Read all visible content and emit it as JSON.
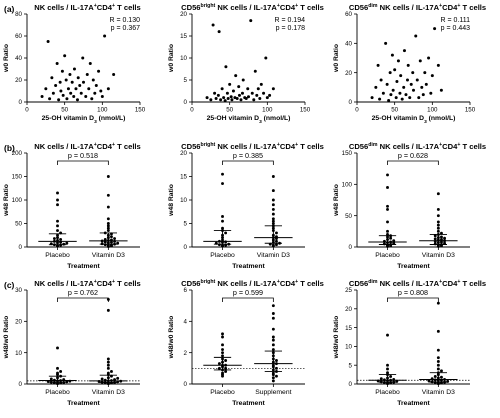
{
  "row_labels": [
    "(a)",
    "(b)",
    "(c)"
  ],
  "panel_titles": {
    "nk": {
      "prefix": "NK cells / IL-17A",
      "sup1": "+",
      "mid": "CD4",
      "sup2": "+",
      "suffix": " T cells"
    },
    "bright": {
      "prefix": "CD56",
      "sup0": "bright",
      "mid0": " NK cells / IL-17A",
      "sup1": "+",
      "mid": "CD4",
      "sup2": "+",
      "suffix": " T cells"
    },
    "dim": {
      "prefix": "CD56",
      "sup0": "dim",
      "mid0": " NK cells / IL-17A",
      "sup1": "+",
      "mid": "CD4",
      "sup2": "+",
      "suffix": " T cells"
    }
  },
  "chart_data": [
    {
      "id": "a1",
      "type": "scatter",
      "row": 0,
      "col": 0,
      "title_key": "nk",
      "xlabel": "25-OH vitamin D",
      "xlabel_sub": "3",
      "xlabel_unit": " (nmol/L)",
      "ylabel": "w0 Ratio",
      "xlim": [
        0,
        150
      ],
      "ylim": [
        0,
        80
      ],
      "xticks": [
        0,
        50,
        100,
        150
      ],
      "yticks": [
        0,
        20,
        40,
        60,
        80
      ],
      "stats": [
        "R = 0.130",
        "p = 0.367"
      ],
      "points": [
        [
          20,
          5
        ],
        [
          25,
          12
        ],
        [
          28,
          55
        ],
        [
          30,
          3
        ],
        [
          33,
          22
        ],
        [
          35,
          8
        ],
        [
          38,
          15
        ],
        [
          40,
          35
        ],
        [
          42,
          2
        ],
        [
          44,
          18
        ],
        [
          45,
          10
        ],
        [
          47,
          28
        ],
        [
          48,
          6
        ],
        [
          50,
          42
        ],
        [
          52,
          20
        ],
        [
          53,
          3
        ],
        [
          55,
          12
        ],
        [
          57,
          25
        ],
        [
          58,
          8
        ],
        [
          60,
          18
        ],
        [
          62,
          5
        ],
        [
          63,
          30
        ],
        [
          65,
          12
        ],
        [
          67,
          2
        ],
        [
          68,
          22
        ],
        [
          70,
          15
        ],
        [
          72,
          8
        ],
        [
          74,
          40
        ],
        [
          75,
          18
        ],
        [
          78,
          5
        ],
        [
          80,
          25
        ],
        [
          82,
          12
        ],
        [
          84,
          35
        ],
        [
          86,
          3
        ],
        [
          88,
          20
        ],
        [
          90,
          8
        ],
        [
          92,
          15
        ],
        [
          95,
          28
        ],
        [
          98,
          10
        ],
        [
          100,
          5
        ],
        [
          103,
          60
        ],
        [
          108,
          12
        ],
        [
          115,
          25
        ]
      ]
    },
    {
      "id": "a2",
      "type": "scatter",
      "row": 0,
      "col": 1,
      "title_key": "bright",
      "xlabel": "25-OH vitamin D",
      "xlabel_sub": "3",
      "xlabel_unit": " (nmol/L)",
      "ylabel": "w0 Ratio",
      "xlim": [
        0,
        150
      ],
      "ylim": [
        0,
        20
      ],
      "xticks": [
        0,
        50,
        100,
        150
      ],
      "yticks": [
        0,
        5,
        10,
        15,
        20
      ],
      "stats": [
        "R = 0.194",
        "p = 0.178"
      ],
      "points": [
        [
          20,
          1
        ],
        [
          25,
          0.5
        ],
        [
          28,
          17.5
        ],
        [
          30,
          2
        ],
        [
          32,
          0.8
        ],
        [
          35,
          1.5
        ],
        [
          36,
          16
        ],
        [
          38,
          0.5
        ],
        [
          40,
          3
        ],
        [
          42,
          1
        ],
        [
          44,
          0.3
        ],
        [
          45,
          8
        ],
        [
          47,
          2
        ],
        [
          48,
          0.8
        ],
        [
          50,
          4
        ],
        [
          52,
          1.2
        ],
        [
          53,
          0.5
        ],
        [
          55,
          2.5
        ],
        [
          57,
          1
        ],
        [
          58,
          6
        ],
        [
          60,
          0.8
        ],
        [
          62,
          3.5
        ],
        [
          63,
          1.5
        ],
        [
          65,
          0.5
        ],
        [
          67,
          2
        ],
        [
          68,
          5
        ],
        [
          70,
          1
        ],
        [
          72,
          0.8
        ],
        [
          74,
          3
        ],
        [
          75,
          1.2
        ],
        [
          78,
          18.5
        ],
        [
          80,
          2
        ],
        [
          82,
          0.5
        ],
        [
          84,
          7
        ],
        [
          86,
          1.5
        ],
        [
          88,
          3
        ],
        [
          90,
          0.8
        ],
        [
          92,
          4
        ],
        [
          95,
          2
        ],
        [
          98,
          10
        ],
        [
          100,
          1
        ],
        [
          103,
          1.5
        ],
        [
          108,
          3
        ]
      ]
    },
    {
      "id": "a3",
      "type": "scatter",
      "row": 0,
      "col": 2,
      "title_key": "dim",
      "xlabel": "25-OH vitamin D",
      "xlabel_sub": "3",
      "xlabel_unit": " (nmol/L)",
      "ylabel": "w0 Ratio",
      "xlim": [
        0,
        150
      ],
      "ylim": [
        0,
        60
      ],
      "xticks": [
        0,
        50,
        100,
        150
      ],
      "yticks": [
        0,
        20,
        40,
        60
      ],
      "stats": [
        "R = 0.111",
        "p = 0.443"
      ],
      "points": [
        [
          20,
          3
        ],
        [
          25,
          10
        ],
        [
          28,
          25
        ],
        [
          30,
          2
        ],
        [
          32,
          15
        ],
        [
          35,
          6
        ],
        [
          38,
          40
        ],
        [
          40,
          12
        ],
        [
          42,
          1
        ],
        [
          44,
          20
        ],
        [
          45,
          5
        ],
        [
          47,
          32
        ],
        [
          48,
          8
        ],
        [
          50,
          22
        ],
        [
          52,
          3
        ],
        [
          53,
          14
        ],
        [
          55,
          28
        ],
        [
          57,
          6
        ],
        [
          58,
          18
        ],
        [
          60,
          2
        ],
        [
          62,
          10
        ],
        [
          63,
          35
        ],
        [
          65,
          5
        ],
        [
          67,
          15
        ],
        [
          68,
          25
        ],
        [
          70,
          3
        ],
        [
          72,
          12
        ],
        [
          74,
          20
        ],
        [
          75,
          8
        ],
        [
          78,
          45
        ],
        [
          80,
          15
        ],
        [
          82,
          3
        ],
        [
          84,
          28
        ],
        [
          86,
          10
        ],
        [
          88,
          5
        ],
        [
          90,
          20
        ],
        [
          92,
          12
        ],
        [
          95,
          30
        ],
        [
          98,
          6
        ],
        [
          100,
          18
        ],
        [
          103,
          50
        ],
        [
          108,
          25
        ],
        [
          112,
          8
        ]
      ]
    },
    {
      "id": "b1",
      "type": "scatter",
      "row": 1,
      "col": 0,
      "title_key": "nk",
      "xlabel": "Treatment",
      "ylabel": "w48 Ratio",
      "categories": [
        "Placebo",
        "Vitamin D3"
      ],
      "ylim": [
        0,
        200
      ],
      "yticks": [
        0,
        50,
        100,
        150,
        200
      ],
      "p_value": "p = 0.518",
      "summary": [
        {
          "median": 12,
          "q1": 5,
          "q3": 28
        },
        {
          "median": 13,
          "q1": 6,
          "q3": 30
        }
      ],
      "series": [
        {
          "name": "Placebo",
          "values": [
            2,
            3,
            4,
            5,
            6,
            7,
            8,
            9,
            10,
            12,
            14,
            16,
            18,
            20,
            25,
            30,
            35,
            45,
            55,
            90,
            100,
            115
          ]
        },
        {
          "name": "Vitamin D3",
          "values": [
            1,
            2,
            3,
            4,
            5,
            6,
            7,
            8,
            9,
            10,
            11,
            12,
            13,
            14,
            15,
            16,
            18,
            20,
            22,
            25,
            28,
            30,
            35,
            40,
            45,
            50,
            60,
            85,
            110,
            150
          ]
        }
      ]
    },
    {
      "id": "b2",
      "type": "scatter",
      "row": 1,
      "col": 1,
      "title_key": "bright",
      "xlabel": "Treatment",
      "ylabel": "w48 Ratio",
      "categories": [
        "Placebo",
        "Vitamin D3"
      ],
      "ylim": [
        0,
        20
      ],
      "yticks": [
        0,
        5,
        10,
        15,
        20
      ],
      "p_value": "p = 0.385",
      "summary": [
        {
          "median": 1.2,
          "q1": 0.6,
          "q3": 3.5
        },
        {
          "median": 2.0,
          "q1": 0.8,
          "q3": 4.5
        }
      ],
      "series": [
        {
          "name": "Placebo",
          "values": [
            0.2,
            0.3,
            0.4,
            0.5,
            0.6,
            0.8,
            1.0,
            1.1,
            1.2,
            1.5,
            2.0,
            2.5,
            3.0,
            3.5,
            4.0,
            5.5,
            6.5,
            13.5,
            15.5
          ]
        },
        {
          "name": "Vitamin D3",
          "values": [
            0.2,
            0.4,
            0.5,
            0.6,
            0.8,
            1.0,
            1.2,
            1.5,
            1.8,
            2.0,
            2.2,
            2.5,
            3.0,
            3.5,
            4.0,
            4.5,
            5.0,
            5.5,
            6.0,
            7.0,
            8.0,
            9.0,
            10.0,
            12.0,
            15.0
          ]
        }
      ]
    },
    {
      "id": "b3",
      "type": "scatter",
      "row": 1,
      "col": 2,
      "title_key": "dim",
      "xlabel": "Treatment",
      "ylabel": "w48 Ratio",
      "categories": [
        "Placebo",
        "Vitamin D3"
      ],
      "ylim": [
        0,
        150
      ],
      "yticks": [
        0,
        50,
        100,
        150
      ],
      "p_value": "p = 0.628",
      "summary": [
        {
          "median": 8,
          "q1": 4,
          "q3": 18
        },
        {
          "median": 10,
          "q1": 4,
          "q3": 20
        }
      ],
      "series": [
        {
          "name": "Placebo",
          "values": [
            1,
            2,
            3,
            4,
            5,
            6,
            7,
            8,
            9,
            10,
            12,
            14,
            16,
            18,
            20,
            25,
            40,
            60,
            65,
            95,
            115
          ]
        },
        {
          "name": "Vitamin D3",
          "values": [
            1,
            2,
            3,
            4,
            5,
            6,
            7,
            8,
            9,
            10,
            11,
            12,
            13,
            14,
            15,
            16,
            18,
            20,
            22,
            25,
            30,
            35,
            40,
            50,
            60,
            85
          ]
        }
      ]
    },
    {
      "id": "c1",
      "type": "scatter",
      "row": 2,
      "col": 0,
      "title_key": "nk",
      "xlabel": "Treatment",
      "ylabel": "w48/w0 Ratio",
      "categories": [
        "Placebo",
        "Vitamin D3"
      ],
      "ylim": [
        0,
        30
      ],
      "yticks": [
        0,
        10,
        20,
        30
      ],
      "p_value": "p = 0.762",
      "reference_line": 1,
      "summary": [
        {
          "median": 1.1,
          "q1": 0.6,
          "q3": 2.5
        },
        {
          "median": 1.0,
          "q1": 0.5,
          "q3": 2.8
        }
      ],
      "series": [
        {
          "name": "Placebo",
          "values": [
            0.1,
            0.2,
            0.3,
            0.4,
            0.5,
            0.6,
            0.7,
            0.8,
            0.9,
            1.0,
            1.1,
            1.2,
            1.4,
            1.6,
            2.0,
            2.5,
            3.0,
            3.5,
            4.0,
            5.0,
            11.5
          ]
        },
        {
          "name": "Vitamin D3",
          "values": [
            0.1,
            0.2,
            0.3,
            0.4,
            0.5,
            0.6,
            0.7,
            0.8,
            0.9,
            1.0,
            1.1,
            1.2,
            1.4,
            1.6,
            1.8,
            2.0,
            2.5,
            3.0,
            3.5,
            4.0,
            5.0,
            6.0,
            7.0,
            8.0,
            23.5,
            27.0
          ]
        }
      ]
    },
    {
      "id": "c2",
      "type": "scatter",
      "row": 2,
      "col": 1,
      "title_key": "bright",
      "xlabel": "Treatment",
      "ylabel": "w48/w0 Ratio",
      "categories": [
        "Placebo",
        "Supplement"
      ],
      "ylim": [
        0,
        6
      ],
      "yticks": [
        0,
        2,
        4,
        6
      ],
      "p_value": "p = 0.599",
      "reference_line": 1,
      "summary": [
        {
          "median": 1.2,
          "q1": 0.9,
          "q3": 1.7
        },
        {
          "median": 1.3,
          "q1": 0.8,
          "q3": 2.1
        }
      ],
      "series": [
        {
          "name": "Placebo",
          "values": [
            0.5,
            0.6,
            0.7,
            0.8,
            0.9,
            1.0,
            1.0,
            1.1,
            1.2,
            1.2,
            1.3,
            1.4,
            1.5,
            1.6,
            1.8,
            2.0,
            2.2,
            2.5,
            3.0,
            3.2
          ]
        },
        {
          "name": "Supplement",
          "values": [
            0.2,
            0.4,
            0.5,
            0.6,
            0.7,
            0.8,
            0.9,
            1.0,
            1.1,
            1.2,
            1.3,
            1.4,
            1.5,
            1.6,
            1.8,
            2.0,
            2.2,
            2.5,
            2.8,
            3.0,
            3.5,
            4.2,
            4.5,
            5.0
          ]
        }
      ]
    },
    {
      "id": "c3",
      "type": "scatter",
      "row": 2,
      "col": 2,
      "title_key": "dim",
      "xlabel": "Treatment",
      "ylabel": "w48/w0 Ratio",
      "categories": [
        "Placebo",
        "Vitamin D3"
      ],
      "ylim": [
        0,
        25
      ],
      "yticks": [
        0,
        5,
        10,
        15,
        20,
        25
      ],
      "p_value": "p = 0.808",
      "reference_line": 1,
      "summary": [
        {
          "median": 1.0,
          "q1": 0.5,
          "q3": 2.5
        },
        {
          "median": 1.2,
          "q1": 0.5,
          "q3": 3.0
        }
      ],
      "series": [
        {
          "name": "Placebo",
          "values": [
            0.1,
            0.2,
            0.3,
            0.4,
            0.5,
            0.6,
            0.7,
            0.8,
            0.9,
            1.0,
            1.1,
            1.2,
            1.4,
            1.6,
            2.0,
            2.5,
            3.0,
            4.0,
            5.0,
            13.0
          ]
        },
        {
          "name": "Vitamin D3",
          "values": [
            0.1,
            0.2,
            0.3,
            0.4,
            0.5,
            0.6,
            0.7,
            0.8,
            0.9,
            1.0,
            1.1,
            1.2,
            1.4,
            1.6,
            1.8,
            2.0,
            2.5,
            3.0,
            3.5,
            4.0,
            5.0,
            6.0,
            7.0,
            9.0,
            14.0,
            21.5
          ]
        }
      ]
    }
  ]
}
